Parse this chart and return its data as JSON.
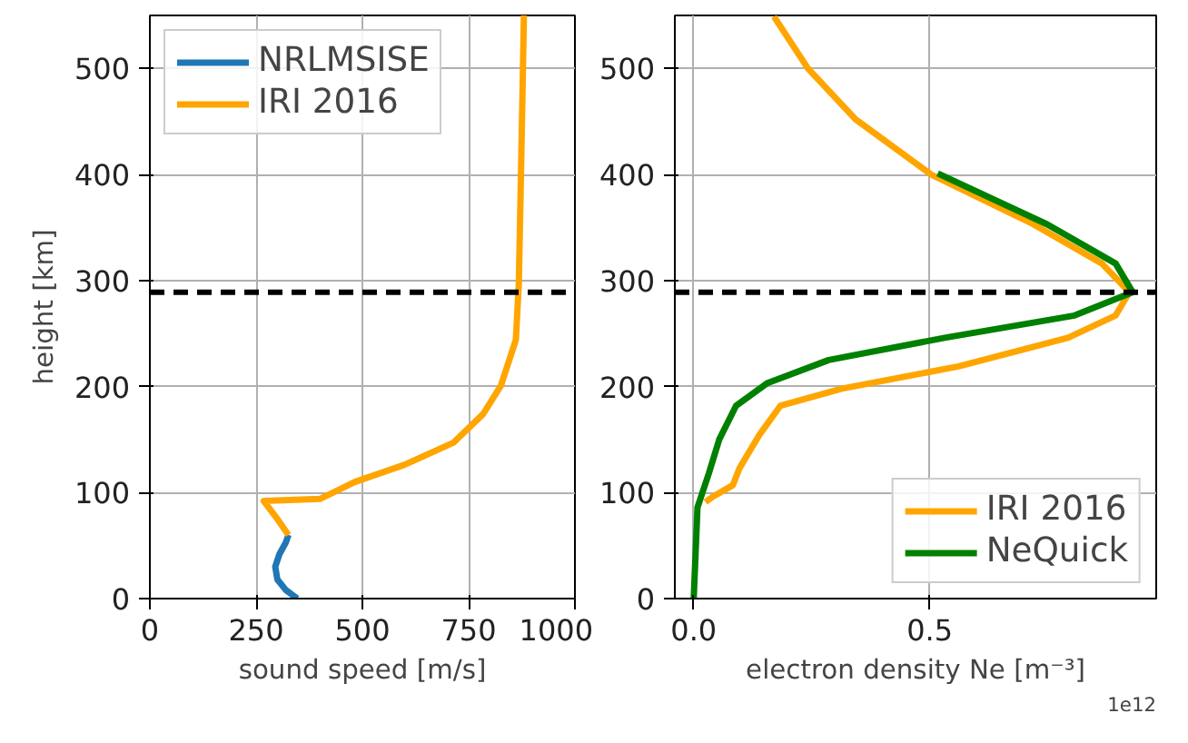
{
  "chart_data": [
    {
      "type": "line",
      "xlabel": "sound speed [m/s]",
      "ylabel": "height [km]",
      "xlim": [
        0,
        1000
      ],
      "ylim": [
        0,
        550
      ],
      "xticks": [
        0,
        250,
        500,
        750,
        1000
      ],
      "yticks": [
        0,
        100,
        200,
        300,
        400,
        500
      ],
      "grid": true,
      "legend": "top left",
      "series": [
        {
          "name": "NRLMSISE",
          "color": "#1f77b4",
          "x": [
            347,
            320,
            300,
            295,
            305,
            320,
            326
          ],
          "values": [
            0,
            8,
            18,
            30,
            42,
            53,
            60
          ]
        },
        {
          "name": "IRI 2016",
          "color": "#ffa500",
          "x": [
            326,
            300,
            268,
            400,
            482,
            598,
            714,
            784,
            826,
            861,
            868,
            874,
            880
          ],
          "values": [
            60,
            75,
            92,
            94,
            110,
            126,
            147,
            174,
            201,
            244,
            297,
            420,
            550
          ]
        }
      ],
      "ref_lines": [
        {
          "axis": "y",
          "value": 289,
          "color": "#000000",
          "line_style": "dashed"
        }
      ]
    },
    {
      "type": "line",
      "xlabel": "electron density Ne [m⁻³]",
      "xlim": [
        -0.04,
        0.98
      ],
      "ylim": [
        0,
        550
      ],
      "xticks": [
        {
          "value": 0,
          "label": "0.0"
        },
        0.5
      ],
      "yticks": [
        0,
        100,
        200,
        300,
        400,
        500
      ],
      "grid": true,
      "legend": "bottom right",
      "annotations": [
        "1e12"
      ],
      "series": [
        {
          "name": "IRI 2016",
          "color": "#ffa500",
          "x": [
            0.025,
            0.04,
            0.083,
            0.097,
            0.14,
            0.184,
            0.314,
            0.561,
            0.793,
            0.894,
            0.923,
            0.865,
            0.72,
            0.503,
            0.343,
            0.242,
            0.17
          ],
          "values": [
            91,
            96,
            107,
            123,
            155,
            182,
            198,
            219,
            246,
            267,
            289,
            316,
            353,
            400,
            452,
            500,
            549
          ]
        },
        {
          "name": "NeQuick",
          "color": "#008000",
          "x": [
            0.0,
            0.008,
            0.032,
            0.054,
            0.09,
            0.155,
            0.286,
            0.532,
            0.807,
            0.93,
            0.894,
            0.749,
            0.517
          ],
          "values": [
            0,
            86,
            118,
            150,
            182,
            203,
            225,
            246,
            267,
            289,
            316,
            353,
            401
          ]
        }
      ],
      "ref_lines": [
        {
          "axis": "y",
          "value": 289,
          "color": "#000000",
          "line_style": "dashed"
        }
      ]
    }
  ]
}
